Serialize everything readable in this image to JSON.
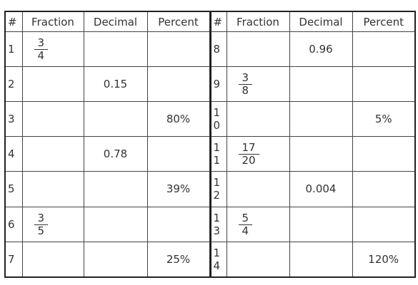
{
  "table": {
    "header": [
      "#",
      "Fraction",
      "Decimal",
      "Percent",
      "#",
      "Fraction",
      "Decimal",
      "Percent"
    ],
    "rows": [
      [
        "1",
        {
          "numerator": "3",
          "denominator": "4"
        },
        null,
        null,
        "8",
        null,
        "0.96",
        null
      ],
      [
        "2",
        null,
        "0.15",
        null,
        "9",
        {
          "numerator": "3",
          "denominator": "8"
        },
        null,
        null
      ],
      [
        "3",
        null,
        null,
        "80%",
        "10",
        null,
        null,
        "5%"
      ],
      [
        "4",
        null,
        "0.78",
        null,
        "11",
        {
          "numerator": "17",
          "denominator": "20"
        },
        null,
        null
      ],
      [
        "5",
        null,
        null,
        "39%",
        "12",
        null,
        "0.004",
        null
      ],
      [
        "6",
        {
          "numerator": "3",
          "denominator": "5"
        },
        null,
        null,
        "13",
        {
          "numerator": "5",
          "denominator": "4"
        },
        null,
        null
      ],
      [
        "7",
        null,
        null,
        "25%",
        "14",
        null,
        null,
        "120%"
      ]
    ]
  }
}
